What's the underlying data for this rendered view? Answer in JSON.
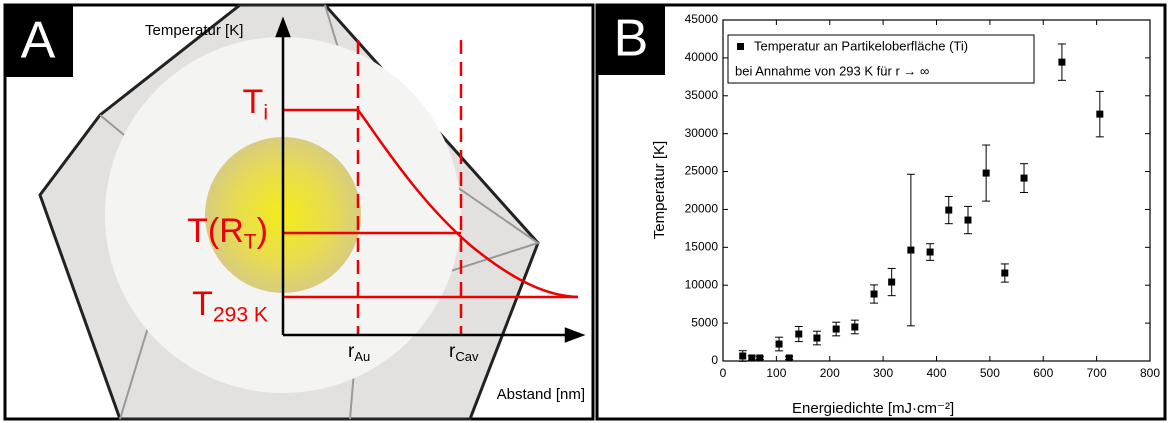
{
  "panel_labels": [
    "A",
    "B"
  ],
  "diagram": {
    "y_axis_label": "Temperatur [K]",
    "x_axis_label": "Abstand [nm]",
    "temperature_labels": [
      {
        "text": "T",
        "sub": "i"
      },
      {
        "text": "T(R",
        "sub": "T",
        "after": ")"
      },
      {
        "text": "T",
        "sub": "293 K"
      }
    ],
    "radius_labels": [
      {
        "text": "r",
        "sub": "Au"
      },
      {
        "text": "r",
        "sub": "Cav"
      }
    ]
  },
  "chart_data": {
    "type": "scatter",
    "xlabel": "Energiedichte [mJ·cm⁻²]",
    "ylabel": "Temperatur [K]",
    "legend_note": "bei Annahme von 293 K für r → ∞",
    "legend": "upper left",
    "x": [
      37,
      54,
      69,
      105,
      124,
      142,
      176,
      212,
      247,
      283,
      316,
      352,
      388,
      423,
      459,
      493,
      528,
      564,
      635,
      706
    ],
    "series": [
      {
        "name": "Temperatur an Partikeloberfläche (Ti)",
        "color": "#000000",
        "values": [
          660,
          400,
          400,
          2240,
          400,
          3560,
          3030,
          4220,
          4490,
          8840,
          10420,
          14640,
          14380,
          19920,
          18600,
          24800,
          11610,
          24140,
          39440,
          32580
        ],
        "errors": [
          700,
          300,
          200,
          900,
          200,
          1000,
          900,
          900,
          900,
          1200,
          1800,
          10000,
          1100,
          1800,
          1800,
          3700,
          1200,
          1900,
          2400,
          3000
        ]
      }
    ],
    "xlim": [
      0,
      800
    ],
    "xticks": [
      0,
      100,
      200,
      300,
      400,
      500,
      600,
      700,
      800
    ],
    "ylim": [
      0,
      45000
    ],
    "yticks": [
      0,
      5000,
      10000,
      15000,
      20000,
      25000,
      30000,
      35000,
      40000,
      45000
    ]
  }
}
